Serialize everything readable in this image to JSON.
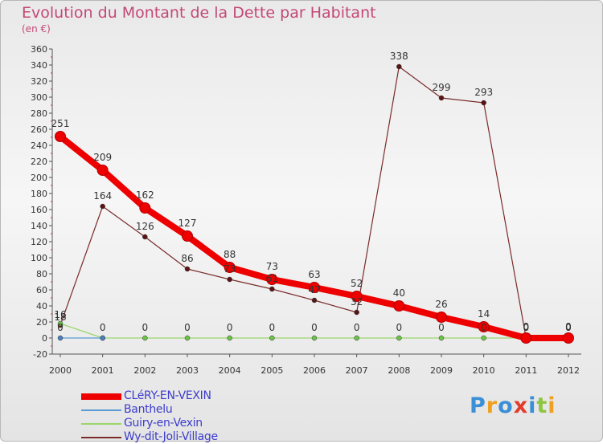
{
  "title": "Evolution du Montant de la Dette par Habitant",
  "unit": "(en €)",
  "logo": {
    "text": "Proxiti",
    "colors": [
      "#3a8fd6",
      "#f0a020",
      "#3a8fd6",
      "#e23b2c",
      "#3a8fd6",
      "#8dc63f",
      "#f0a020"
    ]
  },
  "chart_data": {
    "type": "line",
    "title": "Evolution du Montant de la Dette par Habitant",
    "ylabel": "(en €)",
    "xlabel": "",
    "ylim": [
      -20,
      360
    ],
    "ytick_step": 20,
    "grid": false,
    "legend": "bottom-left",
    "categories": [
      "2000",
      "2001",
      "2002",
      "2003",
      "2004",
      "2005",
      "2006",
      "2007",
      "2008",
      "2009",
      "2010",
      "2011",
      "2012"
    ],
    "series": [
      {
        "name": "CLéRY-EN-VEXIN",
        "color": "#ee0000",
        "values": [
          251,
          209,
          162,
          127,
          88,
          73,
          63,
          52,
          40,
          26,
          14,
          0,
          0
        ]
      },
      {
        "name": "Banthelu",
        "color": "#5b9bd5",
        "values": [
          0,
          0,
          null,
          null,
          null,
          null,
          null,
          null,
          null,
          null,
          null,
          null,
          null
        ]
      },
      {
        "name": "Guiry-en-Vexin",
        "color": "#9bd66b",
        "values": [
          18,
          0,
          0,
          0,
          0,
          0,
          0,
          0,
          0,
          0,
          0,
          0,
          0
        ]
      },
      {
        "name": "Wy-dit-Joli-Village",
        "color": "#7b2b2b",
        "values": [
          16,
          164,
          126,
          86,
          73,
          61,
          47,
          32,
          338,
          299,
          293,
          0,
          0
        ]
      }
    ]
  }
}
